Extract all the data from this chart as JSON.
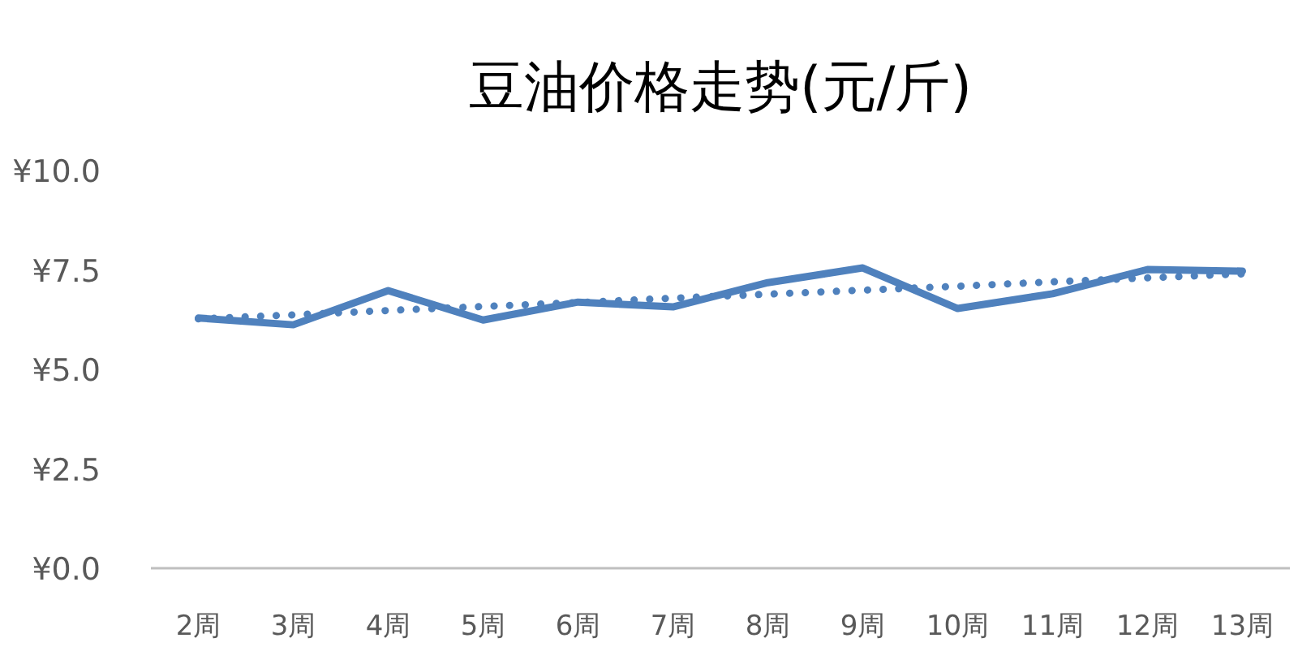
{
  "chart_data": {
    "type": "line",
    "title": "豆油价格走势(元/斤)",
    "categories": [
      "2周",
      "3周",
      "4周",
      "5周",
      "6周",
      "7周",
      "8周",
      "9周",
      "10周",
      "11周",
      "12周",
      "13周"
    ],
    "series": [
      {
        "color": "#4f81bd",
        "line_style": "solid",
        "values": [
          6.29,
          6.12,
          6.98,
          6.24,
          6.69,
          6.57,
          7.18,
          7.55,
          6.53,
          6.9,
          7.51,
          7.47
        ]
      },
      {
        "color": "#4f81bd",
        "line_style": "dotted",
        "values": [
          6.27,
          6.37,
          6.48,
          6.58,
          6.68,
          6.79,
          6.89,
          6.99,
          7.09,
          7.2,
          7.3,
          7.4
        ]
      }
    ],
    "ylim": [
      0,
      10
    ],
    "yticks": [
      {
        "value": 0,
        "label": "¥0.0"
      },
      {
        "value": 2.5,
        "label": "¥2.5"
      },
      {
        "value": 5,
        "label": "¥5.0"
      },
      {
        "value": 7.5,
        "label": "¥7.5"
      },
      {
        "value": 10,
        "label": "¥10.0"
      }
    ],
    "grid": false,
    "marker": "none"
  }
}
